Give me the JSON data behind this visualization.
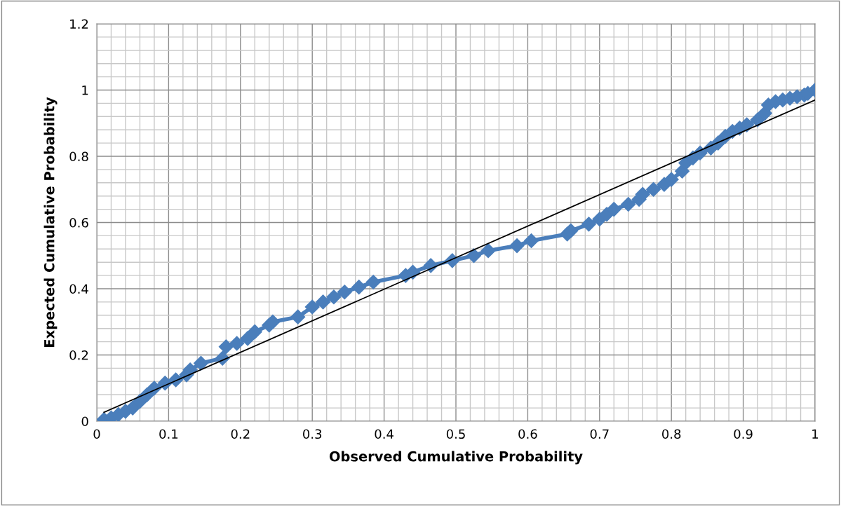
{
  "chart_data": {
    "type": "line",
    "xlabel": "Observed Cumulative Probability",
    "ylabel": "Expected Cumulative Probability",
    "xlim": [
      0,
      1
    ],
    "ylim": [
      0,
      1.2
    ],
    "xticks": [
      0,
      0.1,
      0.2,
      0.3,
      0.4,
      0.5,
      0.6,
      0.7,
      0.8,
      0.9,
      1
    ],
    "yticks": [
      0,
      0.2,
      0.4,
      0.6,
      0.8,
      1,
      1.2
    ],
    "grid": true,
    "legend": false,
    "marker": "diamond",
    "line_style": "solid",
    "series": [
      {
        "color": "#4a7ebb",
        "x": [
          0.01,
          0.02,
          0.03,
          0.04,
          0.05,
          0.06,
          0.07,
          0.08,
          0.095,
          0.11,
          0.125,
          0.13,
          0.145,
          0.175,
          0.18,
          0.195,
          0.21,
          0.22,
          0.24,
          0.245,
          0.28,
          0.3,
          0.315,
          0.33,
          0.345,
          0.365,
          0.385,
          0.43,
          0.44,
          0.465,
          0.495,
          0.525,
          0.545,
          0.585,
          0.605,
          0.655,
          0.66,
          0.685,
          0.7,
          0.71,
          0.72,
          0.74,
          0.755,
          0.76,
          0.775,
          0.79,
          0.8,
          0.815,
          0.82,
          0.83,
          0.84,
          0.855,
          0.865,
          0.875,
          0.885,
          0.895,
          0.905,
          0.92,
          0.93,
          0.935,
          0.945,
          0.955,
          0.965,
          0.975,
          0.985,
          0.99,
          1.0
        ],
        "values": [
          0.005,
          0.01,
          0.02,
          0.03,
          0.04,
          0.06,
          0.08,
          0.1,
          0.115,
          0.125,
          0.14,
          0.155,
          0.175,
          0.19,
          0.225,
          0.235,
          0.25,
          0.27,
          0.29,
          0.3,
          0.315,
          0.345,
          0.36,
          0.375,
          0.39,
          0.405,
          0.42,
          0.44,
          0.45,
          0.47,
          0.485,
          0.5,
          0.515,
          0.53,
          0.545,
          0.565,
          0.575,
          0.595,
          0.61,
          0.625,
          0.64,
          0.655,
          0.67,
          0.685,
          0.7,
          0.715,
          0.73,
          0.755,
          0.78,
          0.795,
          0.81,
          0.825,
          0.84,
          0.86,
          0.875,
          0.885,
          0.895,
          0.91,
          0.93,
          0.955,
          0.965,
          0.97,
          0.975,
          0.98,
          0.985,
          0.99,
          1.0
        ]
      },
      {
        "type": "line",
        "color": "#000000",
        "marker": "none",
        "x": [
          0.01,
          1.0
        ],
        "values": [
          0.027,
          0.97
        ]
      }
    ]
  }
}
